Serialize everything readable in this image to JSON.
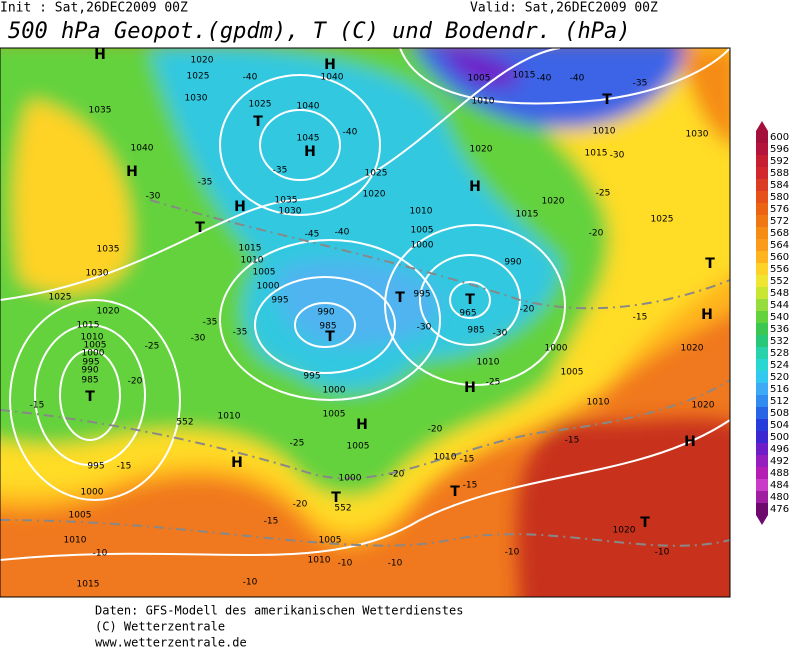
{
  "header": {
    "init": "Init : Sat,26DEC2009  00Z",
    "valid": "Valid: Sat,26DEC2009  00Z",
    "title": "500 hPa Geopot.(gpdm), T (C) und Bodendr. (hPa)"
  },
  "colorbar": {
    "ticks": [
      600,
      596,
      592,
      588,
      584,
      580,
      576,
      572,
      568,
      564,
      560,
      556,
      552,
      548,
      544,
      540,
      536,
      532,
      528,
      524,
      520,
      516,
      512,
      508,
      504,
      500,
      496,
      492,
      488,
      484,
      480,
      476
    ],
    "colors": [
      "#a50f3c",
      "#b4143c",
      "#c81e32",
      "#d2282d",
      "#dc3c23",
      "#e65019",
      "#eb6414",
      "#f07814",
      "#f58c14",
      "#fa9b19",
      "#ffb41e",
      "#ffd228",
      "#f0e632",
      "#c8e632",
      "#96dc3c",
      "#64d23c",
      "#3cc850",
      "#28c878",
      "#28d2aa",
      "#28d7d2",
      "#32c8f0",
      "#3caaf5",
      "#328cf0",
      "#2864e6",
      "#283cdc",
      "#3c28d2",
      "#6e1ec8",
      "#961ebe",
      "#b41eb4",
      "#c83cc8",
      "#a01ea0",
      "#6e0a6e"
    ]
  },
  "map": {
    "labels": [
      "H",
      "H",
      "1040",
      "1020",
      "1025",
      "1030",
      "1025",
      "1040",
      "T",
      "1045",
      "H",
      "1040",
      "H",
      "T",
      "H",
      "1035",
      "1030",
      "-35",
      "-35",
      "-40",
      "-40",
      "1025",
      "1020",
      "1010",
      "1005",
      "1000",
      "-45",
      "-40",
      "1015",
      "1010",
      "1005",
      "1000",
      "995",
      "990",
      "985",
      "T",
      "-35",
      "-30",
      "-35",
      "T",
      "995",
      "T",
      "965",
      "985",
      "-30",
      "-30",
      "990",
      "-20",
      "1000",
      "1005",
      "995",
      "1000",
      "1005",
      "H",
      "1005",
      "1000",
      "T",
      "552",
      "1005",
      "1010",
      "-10",
      "-10",
      "1010",
      "-15",
      "-15",
      "T",
      "-20",
      "-20",
      "-15",
      "-25",
      "-20",
      "H",
      "-25",
      "1010",
      "1010",
      "552",
      "H",
      "995",
      "-15",
      "1000",
      "1005",
      "1010",
      "-10",
      "1015",
      "-10",
      "-10",
      "1020",
      "T",
      "-10",
      "H",
      "1020",
      "H",
      "1020",
      "T",
      "-15",
      "-15",
      "1010",
      "1015",
      "1010",
      "1005",
      "1000",
      "995",
      "990",
      "985",
      "T",
      "-25",
      "-20",
      "-15",
      "1025",
      "1030",
      "1035",
      "1020",
      "1035",
      "-30",
      "1005",
      "1010",
      "1015",
      "-40",
      "-40",
      "-35",
      "T",
      "1010",
      "1015",
      "-30",
      "-25",
      "1020",
      "1015",
      "1030",
      "1025",
      "-20",
      "H",
      "1020"
    ]
  },
  "footer": {
    "line1": "Daten: GFS-Modell des amerikanischen Wetterdienstes",
    "line2": "(C) Wetterzentrale",
    "line3": "www.wetterzentrale.de"
  }
}
